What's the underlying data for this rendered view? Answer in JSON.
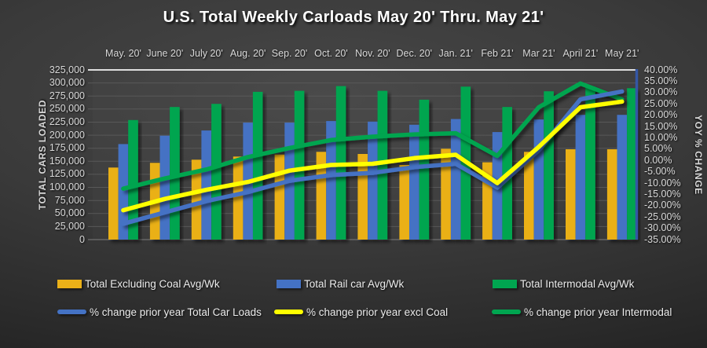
{
  "title": "U.S. Total Weekly Carloads May 20' Thru. May 21'",
  "chart_data": {
    "type": "bar+line",
    "title": "U.S. Total Weekly Carloads May 20' Thru. May 21'",
    "categories": [
      "May. 20'",
      "June 20'",
      "July 20'",
      "Aug. 20'",
      "Sep. 20'",
      "Oct. 20'",
      "Nov. 20'",
      "Dec. 20'",
      "Jan. 21'",
      "Feb 21'",
      "Mar 21'",
      "April 21'",
      "May 21'"
    ],
    "left_axis": {
      "title": "TOTAL CARS LOADED",
      "min": 0,
      "max": 325000,
      "step": 25000,
      "tick_labels": [
        "325,000",
        "300,000",
        "275,000",
        "250,000",
        "225,000",
        "200,000",
        "175,000",
        "150,000",
        "125,000",
        "100,000",
        "75,000",
        "50,000",
        "25,000",
        "0"
      ]
    },
    "right_axis": {
      "title": "YOY % CHANGE",
      "min": -35,
      "max": 40,
      "step": 5,
      "tick_labels": [
        "40.00%",
        "35.00%",
        "30.00%",
        "25.00%",
        "20.00%",
        "15.00%",
        "10.00%",
        "5.00%",
        "0.00%",
        "-5.00%",
        "-10.00%",
        "-15.00%",
        "-20.00%",
        "-25.00%",
        "-30.00%",
        "-35.00%"
      ]
    },
    "grid": true,
    "legend_position": "bottom",
    "bar_series": [
      {
        "name": "Total Excluding Coal Avg/Wk",
        "color": "#EAB018",
        "values": [
          138000,
          147000,
          153000,
          159000,
          163000,
          168000,
          164000,
          143000,
          174000,
          148000,
          168000,
          173000,
          173000
        ]
      },
      {
        "name": "Total Rail car Avg/Wk",
        "color": "#4472C4",
        "values": [
          183000,
          199000,
          209000,
          224000,
          224000,
          227000,
          226000,
          220000,
          231000,
          206000,
          230000,
          239000,
          239000
        ]
      },
      {
        "name": "Total Intermodal Avg/Wk",
        "color": "#00A550",
        "values": [
          229000,
          254000,
          260000,
          283000,
          285000,
          294000,
          285000,
          268000,
          293000,
          254000,
          284000,
          293000,
          290000
        ]
      }
    ],
    "line_series": [
      {
        "name": "% change prior year Total Car Loads",
        "color": "#4472C4",
        "values": [
          -28,
          -23,
          -18,
          -14,
          -9,
          -6.5,
          -5.5,
          -3,
          -1.5,
          -12,
          4.5,
          27,
          30.5
        ]
      },
      {
        "name": "% change prior year excl Coal",
        "color": "#FFFF00",
        "values": [
          -22,
          -17,
          -13,
          -9.5,
          -4.5,
          -2,
          -1.5,
          1,
          2.5,
          -10,
          6,
          23.5,
          26
        ]
      },
      {
        "name": "% change prior year Intermodal",
        "color": "#00A550",
        "values": [
          -12.5,
          -8,
          -4,
          1.5,
          5.5,
          9,
          10.5,
          11.5,
          12,
          2,
          23.5,
          34,
          27
        ]
      }
    ]
  }
}
